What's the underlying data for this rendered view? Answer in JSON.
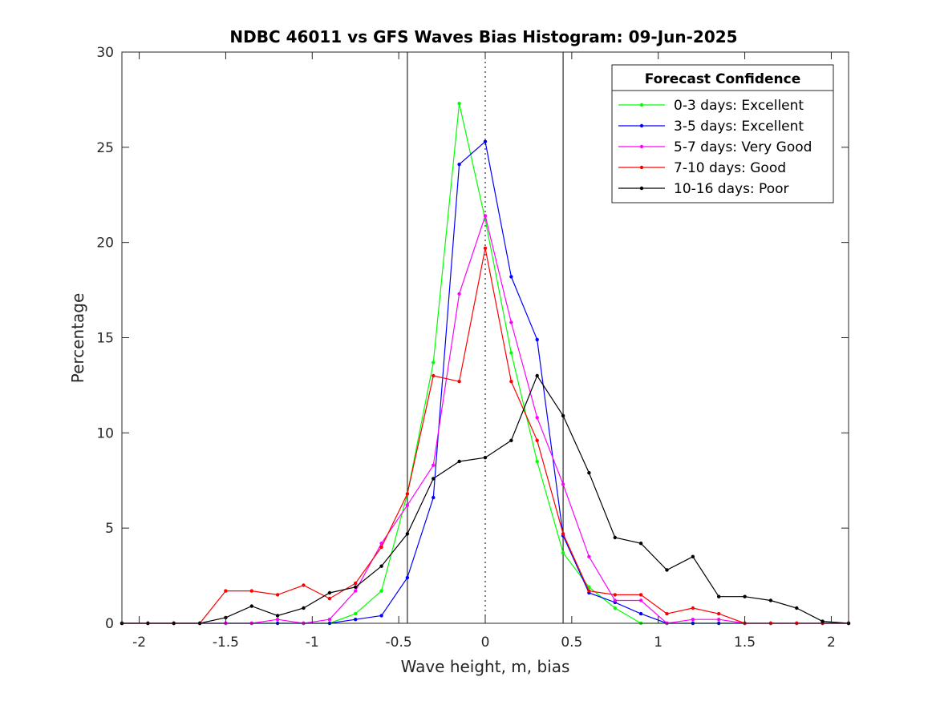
{
  "chart_data": {
    "type": "line",
    "title": "NDBC 46011 vs GFS Waves Bias Histogram: 09-Jun-2025",
    "xlabel": "Wave height, m, bias",
    "ylabel": "Percentage",
    "xlim": [
      -2.1,
      2.1
    ],
    "ylim": [
      0,
      30
    ],
    "xticks": [
      -2,
      -1.5,
      -1,
      -0.5,
      0,
      0.5,
      1,
      1.5,
      2
    ],
    "xtick_labels": [
      "-2",
      "-1.5",
      "-1",
      "-0.5",
      "0",
      "0.5",
      "1",
      "1.5",
      "2"
    ],
    "yticks": [
      0,
      5,
      10,
      15,
      20,
      25,
      30
    ],
    "ytick_labels": [
      "0",
      "5",
      "10",
      "15",
      "20",
      "25",
      "30"
    ],
    "vlines": [
      {
        "x": -0.45,
        "style": "solid"
      },
      {
        "x": 0,
        "style": "dotted"
      },
      {
        "x": 0.45,
        "style": "solid"
      }
    ],
    "legend": {
      "title": "Forecast Confidence",
      "position": "top-right"
    },
    "x": [
      -2.1,
      -1.95,
      -1.8,
      -1.65,
      -1.5,
      -1.35,
      -1.2,
      -1.05,
      -0.9,
      -0.75,
      -0.6,
      -0.45,
      -0.3,
      -0.15,
      0,
      0.15,
      0.3,
      0.45,
      0.6,
      0.75,
      0.9,
      1.05,
      1.2,
      1.35,
      1.5,
      1.65,
      1.8,
      1.95,
      2.1
    ],
    "series": [
      {
        "name": "0-3 days: Excellent",
        "color": "#00ff00",
        "values": [
          0,
          0,
          0,
          0,
          0,
          0,
          0,
          0,
          0,
          0.5,
          1.7,
          6.8,
          13.7,
          27.3,
          21.2,
          14.2,
          8.5,
          3.7,
          1.9,
          0.8,
          0,
          0,
          0,
          0,
          0,
          0,
          0,
          0,
          0
        ]
      },
      {
        "name": "3-5 days: Excellent",
        "color": "#0000ff",
        "values": [
          0,
          0,
          0,
          0,
          0,
          0,
          0,
          0,
          0,
          0.2,
          0.4,
          2.4,
          6.6,
          24.1,
          25.3,
          18.2,
          14.9,
          4.6,
          1.6,
          1.1,
          0.5,
          0,
          0,
          0,
          0,
          0,
          0,
          0,
          0
        ]
      },
      {
        "name": "5-7 days: Very Good",
        "color": "#ff00ff",
        "values": [
          0,
          0,
          0,
          0,
          0,
          0,
          0.2,
          0,
          0.2,
          1.7,
          4.2,
          6.2,
          8.3,
          17.3,
          21.4,
          15.8,
          10.8,
          7.3,
          3.5,
          1.2,
          1.2,
          0,
          0.2,
          0.2,
          0,
          0,
          0,
          0,
          0
        ]
      },
      {
        "name": "7-10 days: Good",
        "color": "#ff0000",
        "values": [
          0,
          0,
          0,
          0,
          1.7,
          1.7,
          1.5,
          2.0,
          1.3,
          2.1,
          4.0,
          6.8,
          13.0,
          12.7,
          19.7,
          12.7,
          9.6,
          4.7,
          1.7,
          1.5,
          1.5,
          0.5,
          0.8,
          0.5,
          0,
          0,
          0,
          0,
          0
        ]
      },
      {
        "name": "10-16 days: Poor",
        "color": "#000000",
        "values": [
          0,
          0,
          0,
          0,
          0.3,
          0.9,
          0.4,
          0.8,
          1.6,
          1.9,
          3.0,
          4.7,
          7.6,
          8.5,
          8.7,
          9.6,
          13.0,
          10.9,
          7.9,
          4.5,
          4.2,
          2.8,
          3.5,
          1.4,
          1.4,
          1.2,
          0.8,
          0.1,
          0
        ]
      }
    ]
  }
}
